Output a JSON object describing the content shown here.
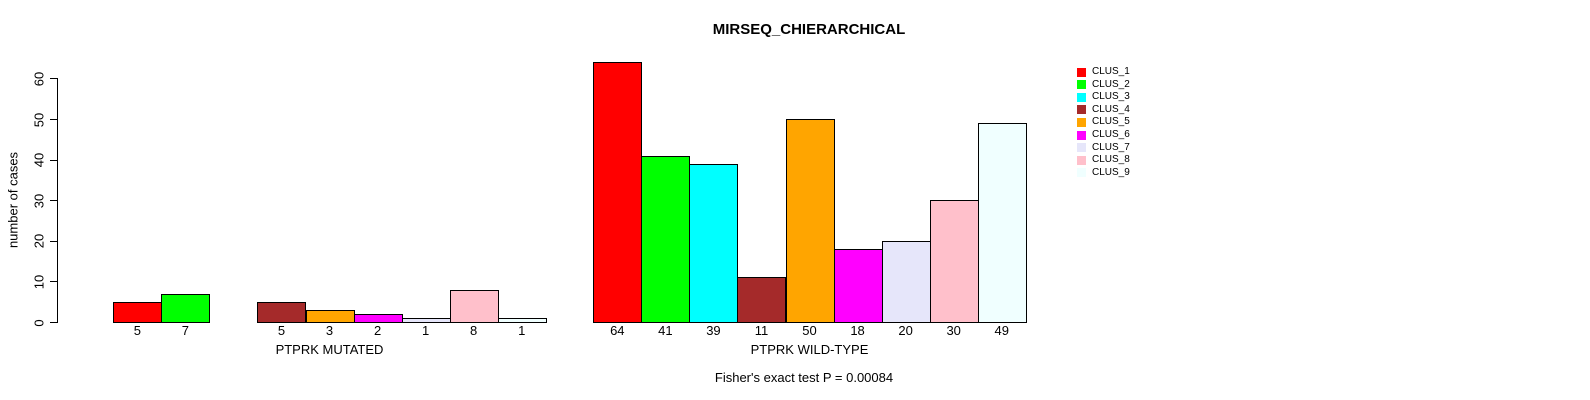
{
  "chart_data": {
    "type": "bar",
    "title": "MIRSEQ_CHIERARCHICAL",
    "ylabel": "number of cases",
    "ylim": [
      0,
      60
    ],
    "yticks": [
      0,
      10,
      20,
      30,
      40,
      50,
      60
    ],
    "grid": false,
    "legend_position": "right-outside",
    "legend": [
      {
        "label": "CLUS_1",
        "color": "#FF0000"
      },
      {
        "label": "CLUS_2",
        "color": "#00FF00"
      },
      {
        "label": "CLUS_3",
        "color": "#00FFFF"
      },
      {
        "label": "CLUS_4",
        "color": "#A52A2A"
      },
      {
        "label": "CLUS_5",
        "color": "#FFA500"
      },
      {
        "label": "CLUS_6",
        "color": "#FF00FF"
      },
      {
        "label": "CLUS_7",
        "color": "#E6E6FA"
      },
      {
        "label": "CLUS_8",
        "color": "#FFC0CB"
      },
      {
        "label": "CLUS_9",
        "color": "#F0FFFF"
      }
    ],
    "groups": [
      {
        "label": "PTPRK MUTATED",
        "values": [
          5,
          7,
          0,
          5,
          3,
          2,
          1,
          8,
          1
        ],
        "bar_labels": [
          "5",
          "7",
          "",
          "5",
          "3",
          "2",
          "1",
          "8",
          "1"
        ]
      },
      {
        "label": "PTPRK WILD-TYPE",
        "values": [
          64,
          41,
          39,
          11,
          50,
          18,
          20,
          30,
          49
        ],
        "bar_labels": [
          "64",
          "41",
          "39",
          "11",
          "50",
          "18",
          "20",
          "30",
          "49"
        ]
      }
    ],
    "annotation": "Fisher's exact test P = 0.00084"
  }
}
